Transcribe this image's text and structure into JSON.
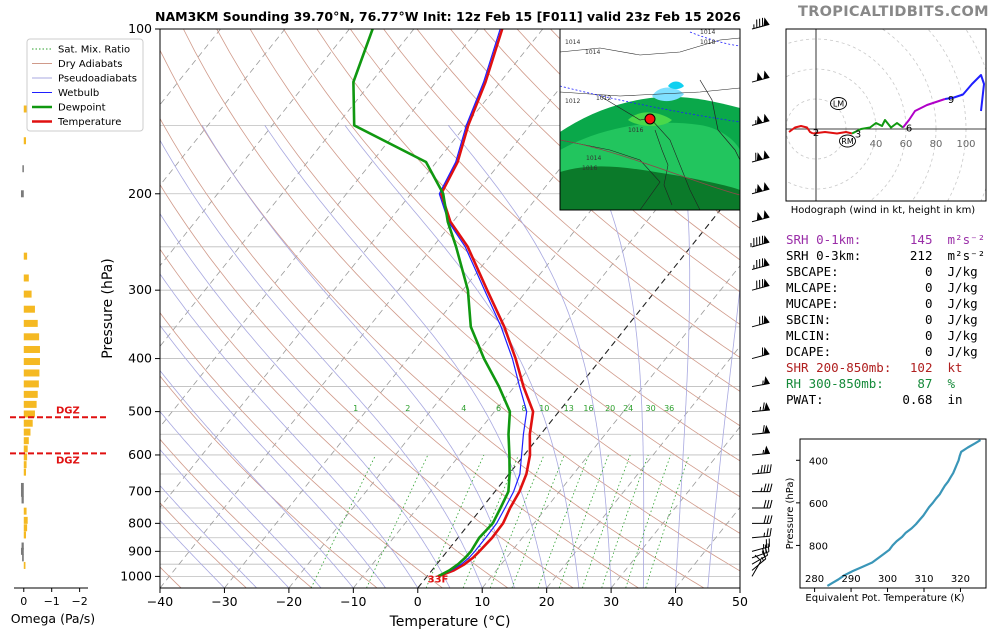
{
  "brand": "TROPICALTIDBITS.COM",
  "title": "NAM3KM Sounding 39.70°N, 76.77°W Init: 12z Feb 15 [F011] valid 23z Feb 15 2026",
  "chart_data": [
    {
      "type": "line",
      "name": "skewt",
      "xlabel": "Temperature (°C)",
      "ylabel": "Pressure (hPa)",
      "xlim": [
        -40,
        50
      ],
      "ylim": [
        1050,
        100
      ],
      "x_ticks": [
        -40,
        -30,
        -20,
        -10,
        0,
        10,
        20,
        30,
        40,
        50
      ],
      "x_tick_labels": [
        "−40",
        "−30",
        "−20",
        "−10",
        "0",
        "10",
        "20",
        "30",
        "40",
        "50"
      ],
      "y_ticks": [
        100,
        200,
        300,
        400,
        500,
        600,
        700,
        800,
        900,
        1000
      ],
      "y_tick_labels": [
        "100",
        "200",
        "300",
        "400",
        "500",
        "600",
        "700",
        "800",
        "900",
        "1000"
      ],
      "legend": {
        "position": "top-left",
        "entries": [
          {
            "label": "Sat. Mix. Ratio",
            "color": "#2ca02c",
            "style": "dotted"
          },
          {
            "label": "Dry Adiabats",
            "color": "#d09a8a",
            "style": "solid"
          },
          {
            "label": "Pseudoadiabats",
            "color": "#a8a8e0",
            "style": "solid"
          },
          {
            "label": "Wetbulb",
            "color": "#1f1fff",
            "style": "solid"
          },
          {
            "label": "Dewpoint",
            "color": "#109810",
            "style": "thick"
          },
          {
            "label": "Temperature",
            "color": "#e01010",
            "style": "thick"
          }
        ]
      },
      "mixing_ratio_labels": [
        "1",
        "2",
        "4",
        "6",
        "8",
        "10",
        "13",
        "16",
        "20",
        "24",
        "30",
        "36"
      ],
      "mixing_ratio_values": [
        1,
        2,
        4,
        6,
        8,
        10,
        13,
        16,
        20,
        24,
        30,
        36
      ],
      "surface_label": "33F",
      "series": [
        {
          "name": "Temperature",
          "color": "#e01010",
          "points": [
            [
              1000,
              1.7
            ],
            [
              975,
              3.4
            ],
            [
              950,
              4.3
            ],
            [
              925,
              4.8
            ],
            [
              900,
              5.0
            ],
            [
              850,
              5.3
            ],
            [
              800,
              5.2
            ],
            [
              750,
              4.4
            ],
            [
              700,
              3.8
            ],
            [
              650,
              2.7
            ],
            [
              600,
              0.9
            ],
            [
              550,
              -1.7
            ],
            [
              500,
              -4.0
            ],
            [
              450,
              -8.6
            ],
            [
              400,
              -13.3
            ],
            [
              350,
              -19.0
            ],
            [
              300,
              -26.2
            ],
            [
              250,
              -34.6
            ],
            [
              225,
              -40.4
            ],
            [
              200,
              -45.3
            ],
            [
              175,
              -46.7
            ],
            [
              150,
              -49.6
            ],
            [
              125,
              -52.3
            ],
            [
              100,
              -56.3
            ]
          ]
        },
        {
          "name": "Wetbulb",
          "color": "#1f1fff",
          "points": [
            [
              1000,
              1.7
            ],
            [
              975,
              3.0
            ],
            [
              950,
              3.8
            ],
            [
              925,
              4.2
            ],
            [
              900,
              4.3
            ],
            [
              850,
              4.3
            ],
            [
              800,
              4.2
            ],
            [
              750,
              3.6
            ],
            [
              700,
              2.9
            ],
            [
              650,
              1.7
            ],
            [
              600,
              -0.4
            ],
            [
              550,
              -2.7
            ],
            [
              500,
              -5.0
            ],
            [
              450,
              -9.2
            ],
            [
              400,
              -13.8
            ],
            [
              350,
              -19.5
            ],
            [
              300,
              -26.6
            ],
            [
              250,
              -35.0
            ],
            [
              225,
              -40.7
            ],
            [
              200,
              -45.6
            ],
            [
              175,
              -47.0
            ],
            [
              150,
              -49.9
            ],
            [
              125,
              -52.6
            ],
            [
              100,
              -56.6
            ]
          ]
        },
        {
          "name": "Dewpoint",
          "color": "#109810",
          "points": [
            [
              1000,
              1.7
            ],
            [
              975,
              2.7
            ],
            [
              950,
              3.3
            ],
            [
              925,
              3.6
            ],
            [
              900,
              3.7
            ],
            [
              850,
              3.3
            ],
            [
              800,
              3.6
            ],
            [
              750,
              2.9
            ],
            [
              700,
              2.1
            ],
            [
              650,
              0.1
            ],
            [
              600,
              -2.3
            ],
            [
              550,
              -5.0
            ],
            [
              500,
              -7.6
            ],
            [
              450,
              -12.4
            ],
            [
              400,
              -18.2
            ],
            [
              350,
              -24.2
            ],
            [
              300,
              -29.2
            ],
            [
              250,
              -36.4
            ],
            [
              225,
              -40.8
            ],
            [
              200,
              -45.0
            ],
            [
              175,
              -51.6
            ],
            [
              150,
              -67.3
            ],
            [
              125,
              -72.8
            ],
            [
              100,
              -76.4
            ]
          ]
        }
      ]
    },
    {
      "type": "hodograph",
      "name": "hodograph",
      "xlabel": "Hodograph (wind in kt, height in km)",
      "ring_labels": [
        "40",
        "60",
        "80",
        "100"
      ],
      "ring_values": [
        40,
        60,
        80,
        100
      ],
      "height_labels": [
        "2",
        "3",
        "6",
        "9"
      ],
      "storm_motion_labels": [
        "LM",
        "RM"
      ],
      "lm": [
        15,
        17
      ],
      "rm": [
        21,
        -8
      ],
      "series": [
        {
          "name": "0-1km",
          "color": "#e01010",
          "points": [
            [
              -18,
              -2
            ],
            [
              -14,
              1
            ],
            [
              -10,
              2
            ],
            [
              -6,
              1
            ],
            [
              -4,
              -2
            ],
            [
              -2,
              -3
            ]
          ]
        },
        {
          "name": "1-3km",
          "color": "#e01010",
          "points": [
            [
              -2,
              -3
            ],
            [
              6,
              -2
            ],
            [
              14,
              -3
            ],
            [
              20,
              -2
            ],
            [
              24,
              -3
            ]
          ]
        },
        {
          "name": "3-6km",
          "color": "#109810",
          "points": [
            [
              24,
              -3
            ],
            [
              30,
              0
            ],
            [
              36,
              1
            ],
            [
              40,
              4
            ],
            [
              44,
              2
            ],
            [
              46,
              6
            ],
            [
              50,
              1
            ],
            [
              54,
              4
            ],
            [
              58,
              1
            ]
          ]
        },
        {
          "name": "6-9km",
          "color": "#b000c8",
          "points": [
            [
              58,
              1
            ],
            [
              62,
              6
            ],
            [
              66,
              12
            ],
            [
              74,
              16
            ],
            [
              80,
              18
            ],
            [
              86,
              20
            ]
          ]
        },
        {
          "name": "9+km",
          "color": "#1f1fff",
          "points": [
            [
              86,
              20
            ],
            [
              92,
              21
            ],
            [
              98,
              23
            ],
            [
              104,
              30
            ],
            [
              110,
              36
            ],
            [
              112,
              30
            ],
            [
              110,
              12
            ]
          ]
        }
      ]
    },
    {
      "type": "line",
      "name": "theta_e",
      "xlabel": "Equivalent Pot. Temperature (K)",
      "ylabel": "Pressure (hPa)",
      "xlim": [
        276,
        327
      ],
      "ylim": [
        1000,
        300
      ],
      "x_ticks": [
        280,
        290,
        300,
        310,
        320
      ],
      "x_tick_labels": [
        "280",
        "290",
        "300",
        "310",
        "320"
      ],
      "y_ticks": [
        400,
        600,
        800
      ],
      "y_tick_labels": [
        "400",
        "600",
        "800"
      ],
      "series": [
        {
          "name": "Equivalent Pot. Temperature",
          "color": "#3a96b8",
          "points": [
            [
              990,
              283.5
            ],
            [
              975,
              285.0
            ],
            [
              960,
              286.5
            ],
            [
              940,
              288.2
            ],
            [
              920,
              290.5
            ],
            [
              900,
              293.2
            ],
            [
              880,
              295.8
            ],
            [
              860,
              297.4
            ],
            [
              840,
              299.0
            ],
            [
              820,
              300.5
            ],
            [
              800,
              301.4
            ],
            [
              780,
              302.5
            ],
            [
              760,
              304.0
            ],
            [
              740,
              305.0
            ],
            [
              720,
              306.6
            ],
            [
              700,
              307.8
            ],
            [
              680,
              308.8
            ],
            [
              660,
              309.8
            ],
            [
              640,
              310.6
            ],
            [
              620,
              311.4
            ],
            [
              600,
              312.4
            ],
            [
              580,
              313.3
            ],
            [
              560,
              314.3
            ],
            [
              540,
              315.0
            ],
            [
              520,
              315.7
            ],
            [
              500,
              316.6
            ],
            [
              480,
              317.3
            ],
            [
              460,
              318.0
            ],
            [
              440,
              318.5
            ],
            [
              420,
              319.0
            ],
            [
              400,
              319.5
            ],
            [
              380,
              319.8
            ],
            [
              360,
              320.2
            ],
            [
              340,
              322.0
            ],
            [
              320,
              324.0
            ],
            [
              305,
              325.5
            ]
          ]
        }
      ]
    },
    {
      "type": "bar",
      "name": "omega",
      "xlabel": "Omega (Pa/s)",
      "xlim": [
        0.35,
        -2.3
      ],
      "x_ticks": [
        0,
        -1,
        -2
      ],
      "x_tick_labels": [
        "0",
        "−1",
        "−2"
      ],
      "dgz_label": "DGZ",
      "dgz_pressures": [
        512,
        596
      ],
      "levels": [
        {
          "p": 140,
          "w": -0.1
        },
        {
          "p": 160,
          "w": -0.08
        },
        {
          "p": 180,
          "w": 0.05
        },
        {
          "p": 200,
          "w": 0.1
        },
        {
          "p": 260,
          "w": -0.12
        },
        {
          "p": 285,
          "w": -0.18
        },
        {
          "p": 305,
          "w": -0.28
        },
        {
          "p": 325,
          "w": -0.4
        },
        {
          "p": 345,
          "w": -0.5
        },
        {
          "p": 365,
          "w": -0.55
        },
        {
          "p": 385,
          "w": -0.58
        },
        {
          "p": 405,
          "w": -0.58
        },
        {
          "p": 425,
          "w": -0.56
        },
        {
          "p": 445,
          "w": -0.54
        },
        {
          "p": 465,
          "w": -0.5
        },
        {
          "p": 485,
          "w": -0.46
        },
        {
          "p": 505,
          "w": -0.4
        },
        {
          "p": 525,
          "w": -0.32
        },
        {
          "p": 545,
          "w": -0.24
        },
        {
          "p": 565,
          "w": -0.18
        },
        {
          "p": 585,
          "w": -0.14
        },
        {
          "p": 605,
          "w": -0.12
        },
        {
          "p": 625,
          "w": -0.1
        },
        {
          "p": 645,
          "w": -0.08
        },
        {
          "p": 685,
          "w": 0.1
        },
        {
          "p": 705,
          "w": 0.1
        },
        {
          "p": 725,
          "w": 0.08
        },
        {
          "p": 760,
          "w": -0.1
        },
        {
          "p": 790,
          "w": -0.14
        },
        {
          "p": 815,
          "w": -0.12
        },
        {
          "p": 840,
          "w": -0.08
        },
        {
          "p": 880,
          "w": 0.08
        },
        {
          "p": 900,
          "w": 0.1
        },
        {
          "p": 925,
          "w": 0.06
        },
        {
          "p": 955,
          "w": -0.06
        }
      ]
    }
  ],
  "stats": [
    {
      "label": "SRH 0-1km:",
      "value": "145",
      "unit": "m²s⁻²",
      "color": "#9a2ea8"
    },
    {
      "label": "SRH 0-3km:",
      "value": "212",
      "unit": "m²s⁻²",
      "color": "#000000"
    },
    {
      "label": "SBCAPE:",
      "value": "0",
      "unit": "J/kg",
      "color": "#000000"
    },
    {
      "label": "MLCAPE:",
      "value": "0",
      "unit": "J/kg",
      "color": "#000000"
    },
    {
      "label": "MUCAPE:",
      "value": "0",
      "unit": "J/kg",
      "color": "#000000"
    },
    {
      "label": "SBCIN:",
      "value": "0",
      "unit": "J/kg",
      "color": "#000000"
    },
    {
      "label": "MLCIN:",
      "value": "0",
      "unit": "J/kg",
      "color": "#000000"
    },
    {
      "label": "DCAPE:",
      "value": "0",
      "unit": "J/kg",
      "color": "#000000"
    },
    {
      "label": "SHR 200-850mb:",
      "value": "102",
      "unit": "kt",
      "color": "#b02020"
    },
    {
      "label": "RH 300-850mb:",
      "value": "87",
      "unit": "%",
      "color": "#168a3a"
    },
    {
      "label": "PWAT:",
      "value": "0.68",
      "unit": "in",
      "color": "#000000"
    }
  ],
  "inset_map": {
    "station_color": "#ff1010",
    "radar_colors": [
      "#0aa84a",
      "#22c55e",
      "#49d84a",
      "#0b7a2a",
      "#7fe0ff",
      "#10d0f0"
    ],
    "labels": [
      "1014",
      "1014",
      "1012",
      "1016",
      "1014",
      "1018",
      "1016",
      "1012",
      "1014"
    ]
  },
  "wind_barbs": [
    {
      "p": 1000,
      "spd": 10,
      "dir": 210
    },
    {
      "p": 975,
      "spd": 15,
      "dir": 230
    },
    {
      "p": 950,
      "spd": 20,
      "dir": 240
    },
    {
      "p": 925,
      "spd": 25,
      "dir": 250
    },
    {
      "p": 900,
      "spd": 25,
      "dir": 255
    },
    {
      "p": 850,
      "spd": 25,
      "dir": 265
    },
    {
      "p": 800,
      "spd": 30,
      "dir": 270
    },
    {
      "p": 750,
      "spd": 30,
      "dir": 270
    },
    {
      "p": 700,
      "spd": 35,
      "dir": 270
    },
    {
      "p": 650,
      "spd": 45,
      "dir": 265
    },
    {
      "p": 600,
      "spd": 55,
      "dir": 265
    },
    {
      "p": 550,
      "spd": 60,
      "dir": 265
    },
    {
      "p": 500,
      "spd": 65,
      "dir": 265
    },
    {
      "p": 450,
      "spd": 55,
      "dir": 260
    },
    {
      "p": 400,
      "spd": 60,
      "dir": 255
    },
    {
      "p": 350,
      "spd": 70,
      "dir": 255
    },
    {
      "p": 300,
      "spd": 80,
      "dir": 255
    },
    {
      "p": 275,
      "spd": 85,
      "dir": 255
    },
    {
      "p": 250,
      "spd": 95,
      "dir": 255
    },
    {
      "p": 225,
      "spd": 100,
      "dir": 255
    },
    {
      "p": 200,
      "spd": 105,
      "dir": 255
    },
    {
      "p": 175,
      "spd": 110,
      "dir": 255
    },
    {
      "p": 150,
      "spd": 105,
      "dir": 255
    },
    {
      "p": 125,
      "spd": 100,
      "dir": 255
    },
    {
      "p": 100,
      "spd": 85,
      "dir": 255
    }
  ]
}
